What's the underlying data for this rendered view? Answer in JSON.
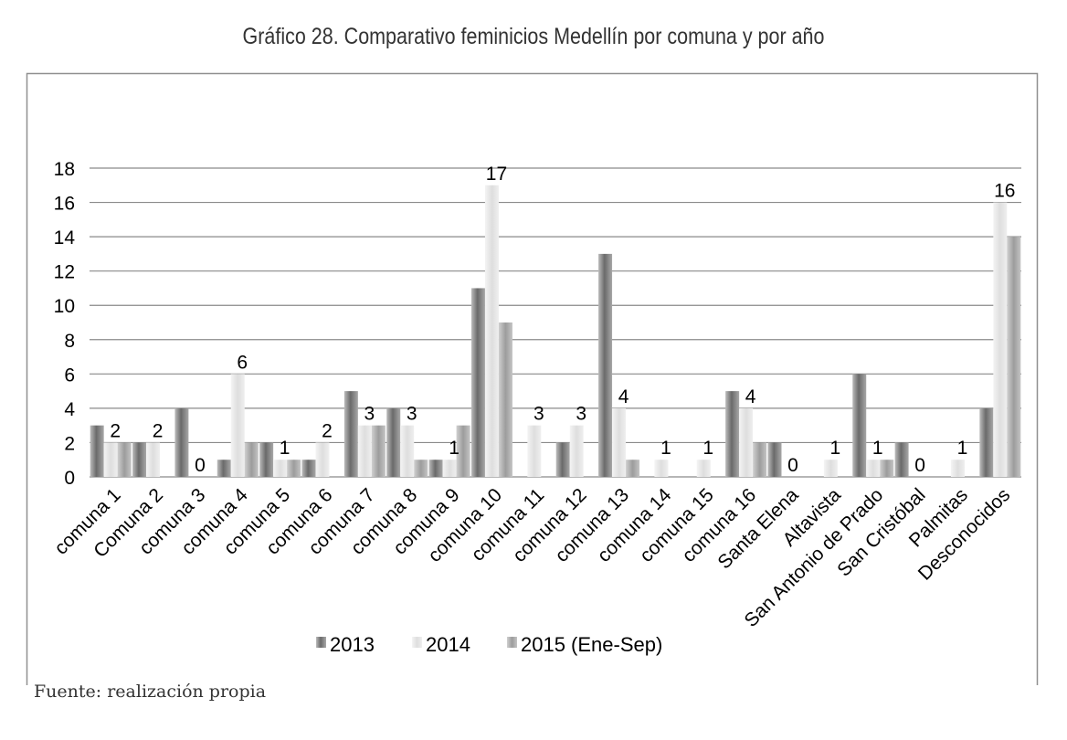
{
  "title": "Gráfico 28. Comparativo feminicios Medellín por comuna y por año",
  "source": "Fuente: realización propia",
  "chart_data": {
    "type": "bar",
    "title": "Gráfico 28. Comparativo feminicios Medellín por comuna y por año",
    "xlabel": "",
    "ylabel": "",
    "ylim": [
      0,
      18
    ],
    "yticks": [
      0,
      2,
      4,
      6,
      8,
      10,
      12,
      14,
      16,
      18
    ],
    "grid": true,
    "legend_position": "bottom",
    "categories": [
      "comuna 1",
      "Comuna 2",
      "comuna 3",
      "comuna 4",
      "comuna 5",
      "comuna 6",
      "comuna 7",
      "comuna 8",
      "comuna 9",
      "comuna 10",
      "comuna 11",
      "comuna 12",
      "comuna 13",
      "comuna 14",
      "comuna 15",
      "comuna 16",
      "Santa Elena",
      "Altavista",
      "San Antonio de Prado",
      "San Cristóbal",
      "Palmitas",
      "Desconocidos"
    ],
    "series": [
      {
        "name": "2013",
        "color": "#6e6e6e",
        "values": [
          3,
          2,
          4,
          1,
          2,
          1,
          5,
          4,
          1,
          11,
          0,
          2,
          13,
          0,
          0,
          5,
          2,
          0,
          6,
          2,
          0,
          4
        ]
      },
      {
        "name": "2014",
        "color": "#e4e4e4",
        "values": [
          2,
          2,
          0,
          6,
          1,
          2,
          3,
          3,
          1,
          17,
          3,
          3,
          4,
          1,
          1,
          4,
          0,
          1,
          1,
          0,
          1,
          16
        ]
      },
      {
        "name": "2015 (Ene-Sep)",
        "color": "#a8a8a8",
        "values": [
          2,
          0,
          0,
          2,
          1,
          0,
          3,
          1,
          3,
          9,
          0,
          0,
          1,
          0,
          0,
          2,
          0,
          0,
          1,
          0,
          0,
          14
        ]
      }
    ],
    "data_labels": [
      {
        "category": 0,
        "series": 1,
        "text": "2"
      },
      {
        "category": 1,
        "series": 1,
        "text": "2"
      },
      {
        "category": 2,
        "series": 1,
        "text": "0"
      },
      {
        "category": 3,
        "series": 1,
        "text": "6"
      },
      {
        "category": 4,
        "series": 1,
        "text": "1"
      },
      {
        "category": 5,
        "series": 1,
        "text": "2"
      },
      {
        "category": 6,
        "series": 1,
        "text": "3"
      },
      {
        "category": 7,
        "series": 1,
        "text": "3"
      },
      {
        "category": 8,
        "series": 1,
        "text": "1"
      },
      {
        "category": 9,
        "series": 1,
        "text": "17"
      },
      {
        "category": 10,
        "series": 1,
        "text": "3"
      },
      {
        "category": 11,
        "series": 1,
        "text": "3"
      },
      {
        "category": 12,
        "series": 1,
        "text": "4"
      },
      {
        "category": 13,
        "series": 1,
        "text": "1"
      },
      {
        "category": 14,
        "series": 1,
        "text": "1"
      },
      {
        "category": 15,
        "series": 1,
        "text": "4"
      },
      {
        "category": 16,
        "series": 1,
        "text": "0"
      },
      {
        "category": 17,
        "series": 1,
        "text": "1"
      },
      {
        "category": 18,
        "series": 1,
        "text": "1"
      },
      {
        "category": 19,
        "series": 1,
        "text": "0"
      },
      {
        "category": 20,
        "series": 1,
        "text": "1"
      },
      {
        "category": 21,
        "series": 1,
        "text": "16"
      }
    ]
  }
}
